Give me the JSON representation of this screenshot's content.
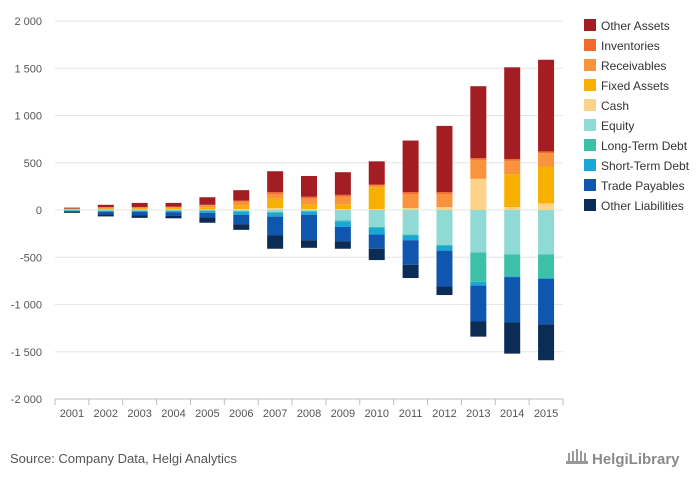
{
  "chart_data": {
    "type": "bar",
    "stacked": true,
    "categories": [
      "2001",
      "2002",
      "2003",
      "2004",
      "2005",
      "2006",
      "2007",
      "2008",
      "2009",
      "2010",
      "2011",
      "2012",
      "2013",
      "2014",
      "2015"
    ],
    "ylim": [
      -2000,
      2000
    ],
    "yticks": [
      -2000,
      -1500,
      -1000,
      -500,
      0,
      500,
      1000,
      1500,
      2000
    ],
    "ytick_labels": [
      "-2 000",
      "-1 500",
      "-1 000",
      "-500",
      "0",
      "500",
      "1 000",
      "1 500",
      "2 000"
    ],
    "grid": true,
    "legend_position": "right",
    "positive_series": [
      {
        "name": "Cash",
        "color": "#fdd38a",
        "values": [
          3,
          5,
          5,
          5,
          5,
          10,
          20,
          10,
          10,
          10,
          20,
          30,
          330,
          30,
          70
        ]
      },
      {
        "name": "Fixed Assets",
        "color": "#f7b000",
        "values": [
          6,
          10,
          12,
          15,
          25,
          40,
          100,
          50,
          50,
          230,
          0,
          0,
          0,
          350,
          390
        ]
      },
      {
        "name": "Receivables",
        "color": "#f9933e",
        "values": [
          5,
          10,
          10,
          10,
          20,
          40,
          50,
          60,
          80,
          20,
          150,
          140,
          200,
          140,
          140
        ]
      },
      {
        "name": "Inventories",
        "color": "#f26a2e",
        "values": [
          2,
          5,
          5,
          5,
          5,
          10,
          20,
          20,
          20,
          10,
          20,
          20,
          20,
          20,
          20
        ]
      },
      {
        "name": "Other Assets",
        "color": "#a31e22",
        "values": [
          9,
          25,
          43,
          40,
          80,
          110,
          220,
          220,
          240,
          245,
          545,
          700,
          760,
          970,
          970
        ]
      }
    ],
    "negative_series": [
      {
        "name": "Equity",
        "color": "#8fdad4",
        "values": [
          -3,
          -5,
          -5,
          -5,
          -5,
          -10,
          -20,
          -10,
          -110,
          -180,
          -260,
          -370,
          -450,
          -470,
          -470
        ]
      },
      {
        "name": "Long-Term Debt",
        "color": "#3cc0a8",
        "values": [
          -2,
          -3,
          -3,
          -3,
          -5,
          -10,
          -10,
          -10,
          -10,
          -10,
          -10,
          -10,
          -310,
          -230,
          -250
        ]
      },
      {
        "name": "Short-Term Debt",
        "color": "#1aa6d6",
        "values": [
          -5,
          -10,
          -10,
          -15,
          -20,
          -30,
          -40,
          -30,
          -60,
          -70,
          -50,
          -50,
          -40,
          -10,
          -10
        ]
      },
      {
        "name": "Trade Payables",
        "color": "#0f57ae",
        "values": [
          -10,
          -30,
          -40,
          -40,
          -50,
          -100,
          -200,
          -270,
          -150,
          -150,
          -260,
          -380,
          -380,
          -480,
          -480
        ]
      },
      {
        "name": "Other Liabilities",
        "color": "#0b2c55",
        "values": [
          -10,
          -20,
          -25,
          -25,
          -55,
          -60,
          -140,
          -80,
          -80,
          -120,
          -140,
          -90,
          -160,
          -330,
          -380
        ]
      }
    ],
    "legend": [
      "Other Assets",
      "Inventories",
      "Receivables",
      "Fixed Assets",
      "Cash",
      "Equity",
      "Long-Term Debt",
      "Short-Term Debt",
      "Trade Payables",
      "Other Liabilities"
    ]
  },
  "footer": {
    "source": "Source: Company Data, Helgi Analytics",
    "brand": "HelgiLibrary"
  }
}
